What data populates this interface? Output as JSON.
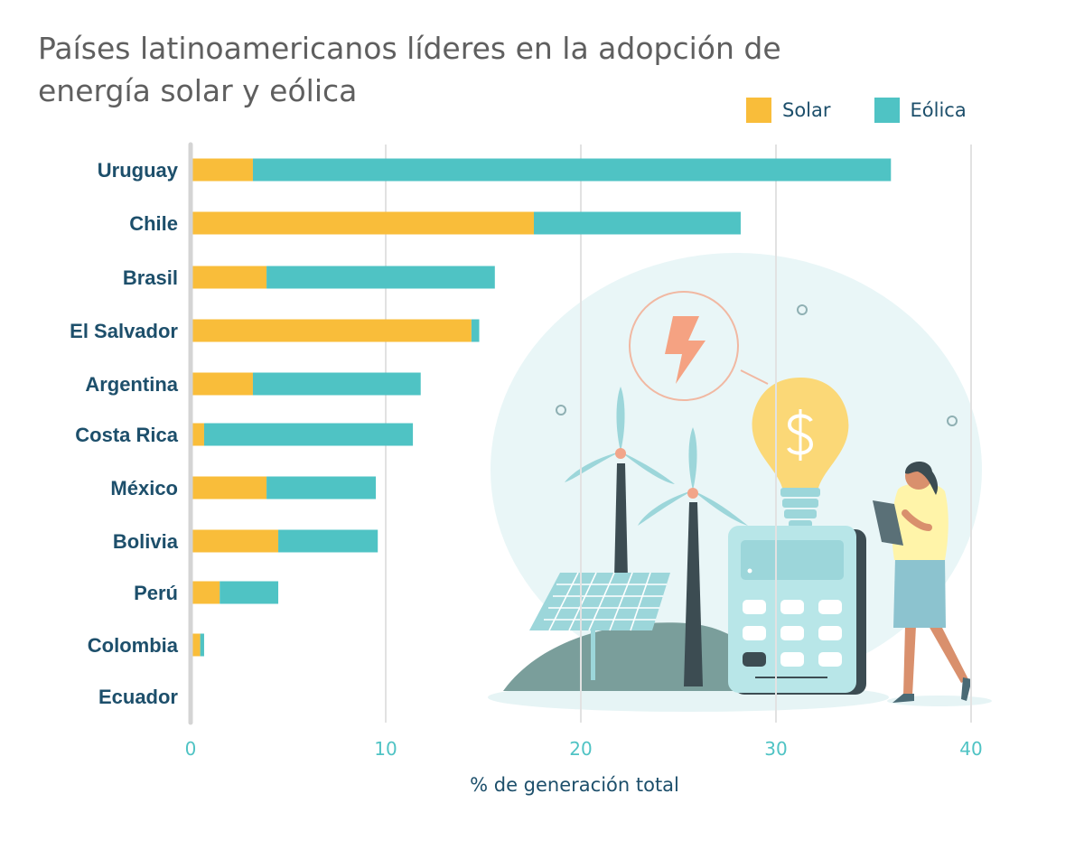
{
  "chart_data": {
    "type": "bar",
    "orientation": "horizontal",
    "stacked": true,
    "title": "Países latinoamericanos líderes en la adopción de energía solar y eólica",
    "xlabel": "% de generación total",
    "ylabel": "",
    "xlim": [
      0,
      40
    ],
    "xticks": [
      "0",
      "10",
      "20",
      "30",
      "40"
    ],
    "grid": "vertical",
    "legend_position": "top-right",
    "categories": [
      "Uruguay",
      "Chile",
      "Brasil",
      "El Salvador",
      "Argentina",
      "Costa Rica",
      "México",
      "Bolivia",
      "Perú",
      "Colombia",
      "Ecuador"
    ],
    "series": [
      {
        "name": "Solar",
        "color": "#f9bd3a",
        "values": [
          3.1,
          17.5,
          3.8,
          14.3,
          3.1,
          0.6,
          3.8,
          4.4,
          1.4,
          0.4,
          0.0
        ]
      },
      {
        "name": "Eólica",
        "color": "#4fc3c4",
        "values": [
          32.7,
          10.6,
          11.7,
          0.4,
          8.6,
          10.7,
          5.6,
          5.1,
          3.0,
          0.2,
          0.0
        ]
      }
    ]
  },
  "illustration": {
    "icons": [
      "lightning-bolt-icon",
      "dollar-sign-icon",
      "wind-turbine-icon",
      "solar-panel-icon",
      "calculator-icon",
      "light-bulb-icon",
      "person-with-tablet-icon"
    ]
  }
}
